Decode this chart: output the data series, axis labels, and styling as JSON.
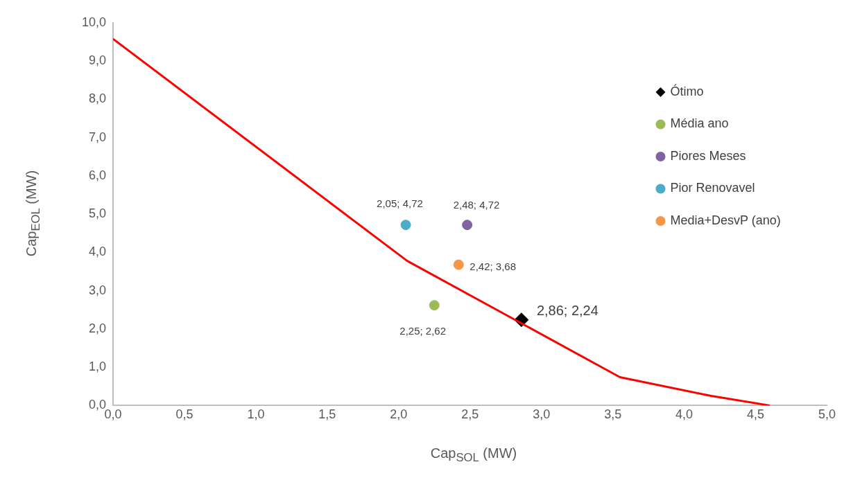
{
  "chart_data": {
    "type": "scatter",
    "xlabel": "Cap$_{SOL}$ (MW)",
    "ylabel": "Cap$_{EOL}$ (MW)",
    "series": [
      {
        "type": "line",
        "color": "#ff0000",
        "x": [
          0,
          2.06,
          3.55,
          4.19,
          4.6
        ],
        "values": [
          9.58,
          3.78,
          0.74,
          0.25,
          0
        ]
      },
      {
        "name": "Ótimo",
        "color": "#000000",
        "marker": "diamond",
        "x": [
          2.86
        ],
        "values": [
          2.24
        ],
        "value_labels": [
          "2,86; 2,24"
        ]
      },
      {
        "name": "Média ano",
        "color": "#9bbb59",
        "marker": "circle",
        "x": [
          2.25
        ],
        "values": [
          2.62
        ],
        "value_labels": [
          "2,25; 2,62"
        ]
      },
      {
        "name": "Piores Meses",
        "color": "#8064a2",
        "marker": "circle",
        "x": [
          2.48
        ],
        "values": [
          4.72
        ],
        "value_labels": [
          "2,48; 4,72"
        ]
      },
      {
        "name": "Pior Renovavel",
        "color": "#4bacc6",
        "marker": "circle",
        "x": [
          2.05
        ],
        "values": [
          4.72
        ],
        "value_labels": [
          "2,05; 4,72"
        ]
      },
      {
        "name": "Media+DesvP (ano)",
        "color": "#f79646",
        "marker": "circle",
        "x": [
          2.42
        ],
        "values": [
          3.68
        ],
        "value_labels": [
          "2,42; 3,68"
        ]
      }
    ],
    "xlim": [
      0,
      5
    ],
    "ylim": [
      0,
      10
    ],
    "xticks": [
      {
        "value": 0,
        "label": "0,0"
      },
      {
        "value": 0.5,
        "label": "0,5"
      },
      {
        "value": 1,
        "label": "1,0"
      },
      {
        "value": 1.5,
        "label": "1,5"
      },
      {
        "value": 2,
        "label": "2,0"
      },
      {
        "value": 2.5,
        "label": "2,5"
      },
      {
        "value": 3,
        "label": "3,0"
      },
      {
        "value": 3.5,
        "label": "3,5"
      },
      {
        "value": 4,
        "label": "4,0"
      },
      {
        "value": 4.5,
        "label": "4,5"
      },
      {
        "value": 5,
        "label": "5,0"
      }
    ],
    "yticks": [
      {
        "value": 0,
        "label": "0,0"
      },
      {
        "value": 1,
        "label": "1,0"
      },
      {
        "value": 2,
        "label": "2,0"
      },
      {
        "value": 3,
        "label": "3,0"
      },
      {
        "value": 4,
        "label": "4,0"
      },
      {
        "value": 5,
        "label": "5,0"
      },
      {
        "value": 6,
        "label": "6,0"
      },
      {
        "value": 7,
        "label": "7,0"
      },
      {
        "value": 8,
        "label": "8,0"
      },
      {
        "value": 9,
        "label": "9,0"
      },
      {
        "value": 10,
        "label": "10,0"
      }
    ],
    "grid": false,
    "legend": "right"
  }
}
